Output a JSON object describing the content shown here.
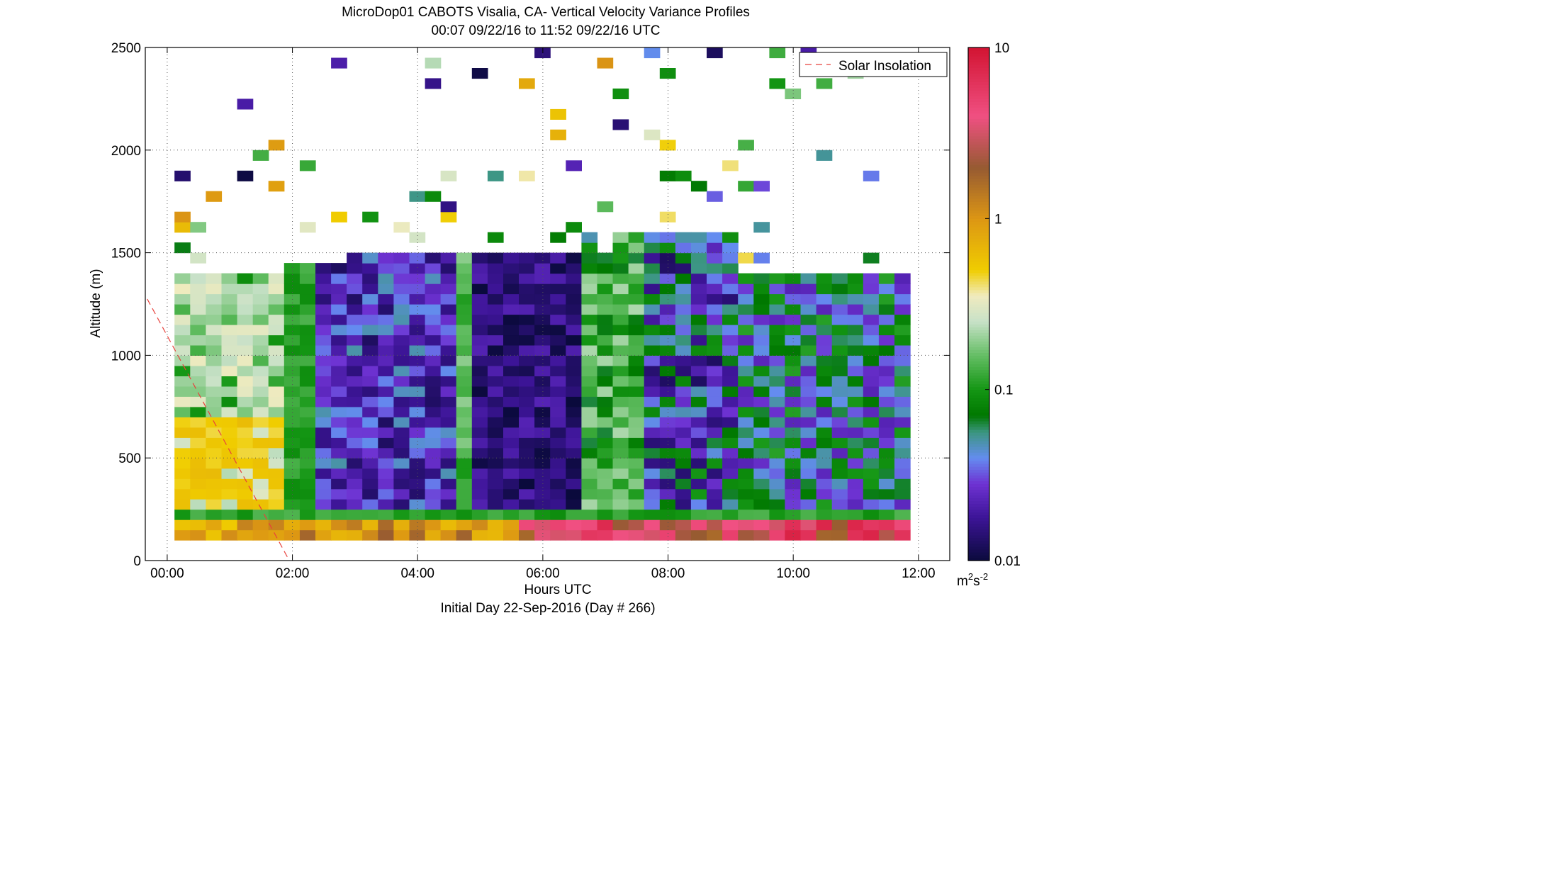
{
  "chart_data": {
    "type": "heatmap",
    "title": "MicroDop01 CABOTS Visalia, CA- Vertical Velocity Variance Profiles",
    "subtitle": "00:07 09/22/16 to 11:52 09/22/16  UTC",
    "xlabel": "Hours UTC",
    "xlabel2": "Initial Day 22-Sep-2016 (Day # 266)",
    "ylabel": "Altitude (m)",
    "x_ticks": [
      "00:00",
      "02:00",
      "04:00",
      "06:00",
      "08:00",
      "10:00",
      "12:00"
    ],
    "x_tick_hours": [
      0,
      2,
      4,
      6,
      8,
      10,
      12
    ],
    "xlim_hours": [
      -0.35,
      12.5
    ],
    "y_ticks": [
      "0",
      "500",
      "1000",
      "1500",
      "2000",
      "2500"
    ],
    "y_tick_values": [
      0,
      500,
      1000,
      1500,
      2000,
      2500
    ],
    "ylim": [
      0,
      2500
    ],
    "grid": true,
    "colorbar": {
      "label_base": "m",
      "label_mid": "s",
      "label_exp1": "2",
      "label_exp2": "-2",
      "scale": "log",
      "range": [
        0.01,
        10
      ],
      "tick_labels": [
        "0.01",
        "0.1",
        "1",
        "10"
      ],
      "tick_values": [
        0.01,
        0.1,
        1,
        10
      ]
    },
    "legend": {
      "position": "top-right",
      "entries": [
        "Solar Insolation"
      ]
    },
    "solar_insolation_line": {
      "x_hours": [
        -0.4,
        1.95
      ],
      "y_m": [
        1320,
        0
      ],
      "color": "#e8413c"
    },
    "time_resolution_hours": 0.25,
    "height_resolution_m": 50,
    "bottom_gate_m": 100,
    "profile_start_hours": 0.117
  }
}
